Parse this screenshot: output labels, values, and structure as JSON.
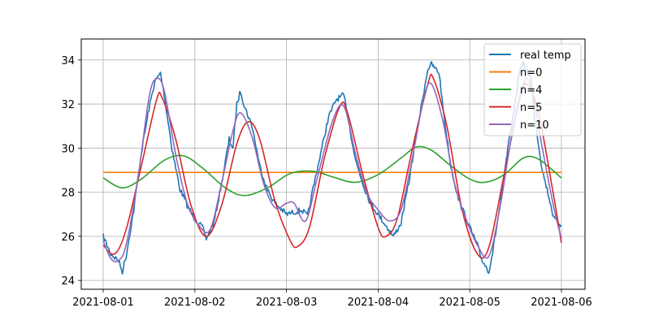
{
  "chart_data": {
    "type": "line",
    "title": "",
    "xlabel": "",
    "ylabel": "",
    "xlim": [
      "2021-08-01",
      "2021-08-06"
    ],
    "ylim": [
      23.6,
      34.95
    ],
    "x_ticks": [
      "2021-08-01",
      "2021-08-02",
      "2021-08-03",
      "2021-08-04",
      "2021-08-05",
      "2021-08-06"
    ],
    "y_ticks": [
      24,
      26,
      28,
      30,
      32,
      34
    ],
    "grid": true,
    "legend_position": "top-right",
    "series": [
      {
        "name": "real temp",
        "color": "#1f77b4",
        "noisy": true,
        "points": [
          [
            "2021-08-01 00:00",
            26.0
          ],
          [
            "2021-08-01 02:00",
            25.2
          ],
          [
            "2021-08-01 04:00",
            24.9
          ],
          [
            "2021-08-01 05:00",
            24.4
          ],
          [
            "2021-08-01 06:00",
            25.1
          ],
          [
            "2021-08-01 08:00",
            27.2
          ],
          [
            "2021-08-01 10:00",
            29.8
          ],
          [
            "2021-08-01 12:00",
            31.8
          ],
          [
            "2021-08-01 13:30",
            33.0
          ],
          [
            "2021-08-01 15:00",
            33.4
          ],
          [
            "2021-08-01 16:00",
            32.4
          ],
          [
            "2021-08-01 18:00",
            30.0
          ],
          [
            "2021-08-01 20:00",
            28.2
          ],
          [
            "2021-08-01 22:00",
            27.4
          ],
          [
            "2021-08-02 00:00",
            26.8
          ],
          [
            "2021-08-02 02:00",
            26.4
          ],
          [
            "2021-08-02 03:00",
            25.9
          ],
          [
            "2021-08-02 05:00",
            26.6
          ],
          [
            "2021-08-02 07:00",
            28.4
          ],
          [
            "2021-08-02 09:00",
            30.4
          ],
          [
            "2021-08-02 10:00",
            30.0
          ],
          [
            "2021-08-02 11:00",
            32.0
          ],
          [
            "2021-08-02 12:00",
            32.6
          ],
          [
            "2021-08-02 13:00",
            31.9
          ],
          [
            "2021-08-02 15:00",
            31.0
          ],
          [
            "2021-08-02 17:00",
            29.2
          ],
          [
            "2021-08-02 19:00",
            28.1
          ],
          [
            "2021-08-02 21:00",
            27.5
          ],
          [
            "2021-08-03 00:00",
            27.0
          ],
          [
            "2021-08-03 04:00",
            27.2
          ],
          [
            "2021-08-03 05:30",
            26.9
          ],
          [
            "2021-08-03 07:00",
            28.2
          ],
          [
            "2021-08-03 09:00",
            29.8
          ],
          [
            "2021-08-03 11:00",
            31.4
          ],
          [
            "2021-08-03 13:00",
            32.2
          ],
          [
            "2021-08-03 15:00",
            32.4
          ],
          [
            "2021-08-03 16:00",
            31.5
          ],
          [
            "2021-08-03 18:00",
            29.5
          ],
          [
            "2021-08-03 20:00",
            28.4
          ],
          [
            "2021-08-03 22:00",
            27.5
          ],
          [
            "2021-08-04 00:00",
            27.0
          ],
          [
            "2021-08-04 02:00",
            26.5
          ],
          [
            "2021-08-04 04:00",
            26.0
          ],
          [
            "2021-08-04 06:00",
            26.6
          ],
          [
            "2021-08-04 08:00",
            28.4
          ],
          [
            "2021-08-04 10:00",
            30.6
          ],
          [
            "2021-08-04 12:00",
            32.6
          ],
          [
            "2021-08-04 13:00",
            33.6
          ],
          [
            "2021-08-04 14:00",
            33.8
          ],
          [
            "2021-08-04 16:00",
            33.4
          ],
          [
            "2021-08-04 17:00",
            31.8
          ],
          [
            "2021-08-04 19:00",
            29.2
          ],
          [
            "2021-08-04 21:00",
            27.7
          ],
          [
            "2021-08-05 00:00",
            26.4
          ],
          [
            "2021-08-05 02:00",
            25.6
          ],
          [
            "2021-08-05 03:00",
            25.0
          ],
          [
            "2021-08-05 05:00",
            24.4
          ],
          [
            "2021-08-05 06:00",
            25.3
          ],
          [
            "2021-08-05 08:00",
            27.5
          ],
          [
            "2021-08-05 10:00",
            30.0
          ],
          [
            "2021-08-05 12:00",
            32.2
          ],
          [
            "2021-08-05 13:00",
            33.5
          ],
          [
            "2021-08-05 14:00",
            33.8
          ],
          [
            "2021-08-05 16:00",
            33.2
          ],
          [
            "2021-08-05 17:00",
            31.4
          ],
          [
            "2021-08-05 19:00",
            29.0
          ],
          [
            "2021-08-05 21:00",
            27.6
          ],
          [
            "2021-08-05 22:00",
            26.8
          ],
          [
            "2021-08-06 00:00",
            26.5
          ]
        ]
      },
      {
        "name": "n=0",
        "color": "#ff7f0e",
        "points": [
          [
            "2021-08-01 00:00",
            28.9
          ],
          [
            "2021-08-06 00:00",
            28.9
          ]
        ]
      },
      {
        "name": "n=4",
        "color": "#2ca02c",
        "points": [
          [
            "2021-08-01 00:00",
            28.65
          ],
          [
            "2021-08-01 05:00",
            28.2
          ],
          [
            "2021-08-01 10:00",
            28.6
          ],
          [
            "2021-08-01 16:00",
            29.45
          ],
          [
            "2021-08-01 21:00",
            29.65
          ],
          [
            "2021-08-02 02:00",
            29.1
          ],
          [
            "2021-08-02 08:00",
            28.2
          ],
          [
            "2021-08-02 13:00",
            27.85
          ],
          [
            "2021-08-02 19:00",
            28.2
          ],
          [
            "2021-08-03 01:00",
            28.85
          ],
          [
            "2021-08-03 07:00",
            28.95
          ],
          [
            "2021-08-03 12:00",
            28.7
          ],
          [
            "2021-08-03 18:00",
            28.45
          ],
          [
            "2021-08-04 00:00",
            28.8
          ],
          [
            "2021-08-04 06:00",
            29.55
          ],
          [
            "2021-08-04 10:00",
            30.05
          ],
          [
            "2021-08-04 14:00",
            29.9
          ],
          [
            "2021-08-04 19:00",
            29.2
          ],
          [
            "2021-08-05 00:00",
            28.6
          ],
          [
            "2021-08-05 04:00",
            28.45
          ],
          [
            "2021-08-05 09:00",
            28.8
          ],
          [
            "2021-08-05 14:00",
            29.55
          ],
          [
            "2021-08-05 18:00",
            29.5
          ],
          [
            "2021-08-06 00:00",
            28.65
          ]
        ]
      },
      {
        "name": "n=5",
        "color": "#d62728",
        "points": [
          [
            "2021-08-01 00:00",
            25.6
          ],
          [
            "2021-08-01 03:00",
            25.2
          ],
          [
            "2021-08-01 06:00",
            26.3
          ],
          [
            "2021-08-01 10:00",
            29.2
          ],
          [
            "2021-08-01 14:00",
            32.2
          ],
          [
            "2021-08-01 15:30",
            32.25
          ],
          [
            "2021-08-01 19:00",
            30.4
          ],
          [
            "2021-08-01 23:00",
            27.4
          ],
          [
            "2021-08-02 03:00",
            26.0
          ],
          [
            "2021-08-02 07:00",
            27.4
          ],
          [
            "2021-08-02 11:00",
            30.2
          ],
          [
            "2021-08-02 14:00",
            31.2
          ],
          [
            "2021-08-02 17:00",
            30.4
          ],
          [
            "2021-08-02 21:00",
            27.6
          ],
          [
            "2021-08-03 01:00",
            25.8
          ],
          [
            "2021-08-03 03:00",
            25.55
          ],
          [
            "2021-08-03 06:00",
            26.4
          ],
          [
            "2021-08-03 10:00",
            29.6
          ],
          [
            "2021-08-03 14:00",
            31.9
          ],
          [
            "2021-08-03 16:00",
            31.6
          ],
          [
            "2021-08-03 20:00",
            28.8
          ],
          [
            "2021-08-04 00:00",
            26.4
          ],
          [
            "2021-08-04 02:00",
            26.0
          ],
          [
            "2021-08-04 05:00",
            26.8
          ],
          [
            "2021-08-04 09:00",
            30.0
          ],
          [
            "2021-08-04 13:00",
            32.9
          ],
          [
            "2021-08-04 14:30",
            33.15
          ],
          [
            "2021-08-04 18:00",
            31.0
          ],
          [
            "2021-08-04 22:00",
            27.2
          ],
          [
            "2021-08-05 02:00",
            25.2
          ],
          [
            "2021-08-05 05:00",
            25.5
          ],
          [
            "2021-08-05 09:00",
            28.8
          ],
          [
            "2021-08-05 13:00",
            32.2
          ],
          [
            "2021-08-05 15:00",
            32.9
          ],
          [
            "2021-08-05 18:00",
            31.6
          ],
          [
            "2021-08-05 22:00",
            27.8
          ],
          [
            "2021-08-06 00:00",
            25.7
          ]
        ]
      },
      {
        "name": "n=10",
        "color": "#9467bd",
        "points": [
          [
            "2021-08-01 00:00",
            25.8
          ],
          [
            "2021-08-01 02:00",
            25.0
          ],
          [
            "2021-08-01 04:00",
            24.9
          ],
          [
            "2021-08-01 06:00",
            25.6
          ],
          [
            "2021-08-01 09:00",
            28.5
          ],
          [
            "2021-08-01 12:00",
            32.3
          ],
          [
            "2021-08-01 14:00",
            33.15
          ],
          [
            "2021-08-01 16:00",
            32.6
          ],
          [
            "2021-08-01 19:00",
            29.7
          ],
          [
            "2021-08-01 22:00",
            27.5
          ],
          [
            "2021-08-02 01:00",
            26.5
          ],
          [
            "2021-08-02 04:00",
            26.3
          ],
          [
            "2021-08-02 07:00",
            28.4
          ],
          [
            "2021-08-02 10:00",
            30.8
          ],
          [
            "2021-08-02 12:00",
            31.6
          ],
          [
            "2021-08-02 15:00",
            30.5
          ],
          [
            "2021-08-02 18:00",
            28.4
          ],
          [
            "2021-08-02 21:00",
            27.3
          ],
          [
            "2021-08-03 00:00",
            27.5
          ],
          [
            "2021-08-03 02:00",
            27.5
          ],
          [
            "2021-08-03 05:00",
            26.7
          ],
          [
            "2021-08-03 08:00",
            28.6
          ],
          [
            "2021-08-03 12:00",
            31.2
          ],
          [
            "2021-08-03 15:00",
            31.9
          ],
          [
            "2021-08-03 18:00",
            29.8
          ],
          [
            "2021-08-03 21:00",
            28.0
          ],
          [
            "2021-08-04 00:00",
            27.2
          ],
          [
            "2021-08-04 03:00",
            26.7
          ],
          [
            "2021-08-04 06:00",
            27.2
          ],
          [
            "2021-08-04 09:00",
            29.6
          ],
          [
            "2021-08-04 12:00",
            32.3
          ],
          [
            "2021-08-04 14:00",
            32.9
          ],
          [
            "2021-08-04 17:00",
            31.2
          ],
          [
            "2021-08-04 20:00",
            28.4
          ],
          [
            "2021-08-04 23:00",
            26.8
          ],
          [
            "2021-08-05 02:00",
            25.6
          ],
          [
            "2021-08-05 05:00",
            25.1
          ],
          [
            "2021-08-05 08:00",
            27.4
          ],
          [
            "2021-08-05 11:00",
            30.6
          ],
          [
            "2021-08-05 14:00",
            32.9
          ],
          [
            "2021-08-05 16:00",
            32.8
          ],
          [
            "2021-08-05 19:00",
            30.0
          ],
          [
            "2021-08-05 22:00",
            27.3
          ],
          [
            "2021-08-06 00:00",
            25.9
          ]
        ]
      }
    ]
  }
}
